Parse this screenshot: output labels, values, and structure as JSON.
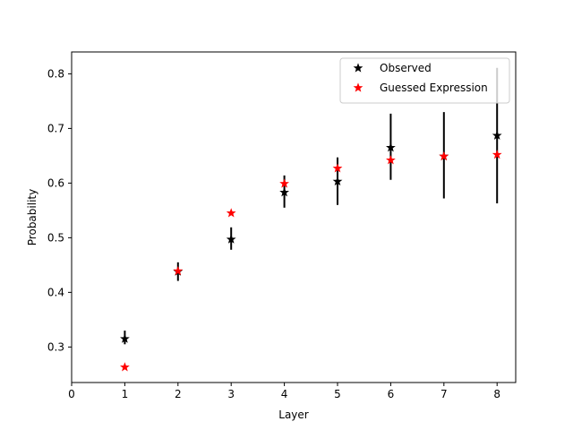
{
  "chart_data": {
    "type": "scatter",
    "xlabel": "Layer",
    "ylabel": "Probability",
    "xlim": [
      0,
      8.35
    ],
    "ylim": [
      0.235,
      0.84
    ],
    "xticks": [
      0,
      1,
      2,
      3,
      4,
      5,
      6,
      7,
      8
    ],
    "yticks": [
      0.3,
      0.4,
      0.5,
      0.6,
      0.7,
      0.8
    ],
    "xtick_labels": [
      "0",
      "1",
      "2",
      "3",
      "4",
      "5",
      "6",
      "7",
      "8"
    ],
    "ytick_labels": [
      "0.3",
      "0.4",
      "0.5",
      "0.6",
      "0.7",
      "0.8"
    ],
    "grid": false,
    "legend_position": "top-right",
    "series": [
      {
        "name": "Observed",
        "color": "#000000",
        "marker": "star",
        "x": [
          1,
          2,
          3,
          4,
          5,
          6,
          7,
          8
        ],
        "y": [
          0.315,
          0.438,
          0.497,
          0.583,
          0.603,
          0.665,
          0.649,
          0.687
        ],
        "error_low": [
          0.305,
          0.421,
          0.478,
          0.555,
          0.56,
          0.606,
          0.572,
          0.563
        ],
        "error_high": [
          0.33,
          0.455,
          0.519,
          0.614,
          0.647,
          0.727,
          0.73,
          0.811
        ]
      },
      {
        "name": "Guessed Expression",
        "color": "#ff0000",
        "marker": "star",
        "x": [
          1,
          2,
          3,
          4,
          5,
          6,
          7,
          8
        ],
        "y": [
          0.263,
          0.439,
          0.545,
          0.599,
          0.627,
          0.642,
          0.649,
          0.652
        ]
      }
    ]
  }
}
